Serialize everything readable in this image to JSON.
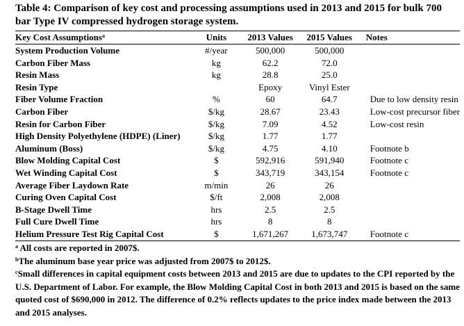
{
  "caption": "Table 4: Comparison of key cost and processing assumptions used in 2013 and 2015 for bulk 700 bar Type IV compressed hydrogen storage system.",
  "headers": {
    "name": "Key Cost Assumptions",
    "name_sup": "a",
    "units": "Units",
    "v2013": "2013 Values",
    "v2015": "2015 Values",
    "notes": "Notes"
  },
  "rows": [
    {
      "name": "System Production Volume",
      "units": "#/year",
      "v2013": "500,000",
      "v2015": "500,000",
      "notes": ""
    },
    {
      "name": "Carbon Fiber Mass",
      "units": "kg",
      "v2013": "62.2",
      "v2015": "72.0",
      "notes": ""
    },
    {
      "name": "Resin Mass",
      "units": "kg",
      "v2013": "28.8",
      "v2015": "25.0",
      "notes": ""
    },
    {
      "name": "Resin Type",
      "units": "",
      "v2013": "Epoxy",
      "v2015": "Vinyl Ester",
      "notes": ""
    },
    {
      "name": "Fiber Volume Fraction",
      "units": "%",
      "v2013": "60",
      "v2015": "64.7",
      "notes": "Due to low density resin"
    },
    {
      "name": "Carbon Fiber",
      "units": "$/kg",
      "v2013": "28.67",
      "v2015": "23.43",
      "notes": "Low-cost precursor fiber"
    },
    {
      "name": "Resin for Carbon Fiber",
      "units": "$/kg",
      "v2013": "7.09",
      "v2015": "4.52",
      "notes": "Low-cost resin"
    },
    {
      "name": "High Density Polyethylene (HDPE) (Liner)",
      "units": "$/kg",
      "v2013": "1.77",
      "v2015": "1.77",
      "notes": ""
    },
    {
      "name": "Aluminum (Boss)",
      "units": "$/kg",
      "v2013": "4.75",
      "v2015": "4.10",
      "notes": "Footnote b"
    },
    {
      "name": "Blow Molding Capital Cost",
      "units": "$",
      "v2013": "592,916",
      "v2015": "591,940",
      "notes": "Footnote c"
    },
    {
      "name": "Wet Winding Capital Cost",
      "units": "$",
      "v2013": "343,719",
      "v2015": "343,154",
      "notes": "Footnote c"
    },
    {
      "name": "Average Fiber Laydown Rate",
      "units": "m/min",
      "v2013": "26",
      "v2015": "26",
      "notes": ""
    },
    {
      "name": "Curing Oven Capital Cost",
      "units": "$/ft",
      "v2013": "2,008",
      "v2015": "2,008",
      "notes": ""
    },
    {
      "name": "B-Stage Dwell Time",
      "units": "hrs",
      "v2013": "2.5",
      "v2015": "2.5",
      "notes": ""
    },
    {
      "name": "Full Cure Dwell Time",
      "units": "hrs",
      "v2013": "8",
      "v2015": "8",
      "notes": ""
    },
    {
      "name": "Helium Pressure Test Rig  Capital Cost",
      "units": "$",
      "v2013": "1,671,267",
      "v2015": "1,673,747",
      "notes": "Footnote c"
    }
  ],
  "footnotes": [
    {
      "mark": "a",
      "text": " All costs are reported in 2007$."
    },
    {
      "mark": "b",
      "text": "The aluminum base year price was adjusted from 2007$ to 2012$."
    },
    {
      "mark": "c",
      "text": "Small differences in capital equipment costs between 2013 and 2015 are due to updates to the CPI reported by the U.S. Department of Labor. For example, the Blow Molding Capital Cost in both 2013 and 2015 is based on the same quoted cost of $690,000 in 2012. The difference of 0.2% reflects updates to the price index made between the 2013 and 2015 analyses."
    }
  ]
}
